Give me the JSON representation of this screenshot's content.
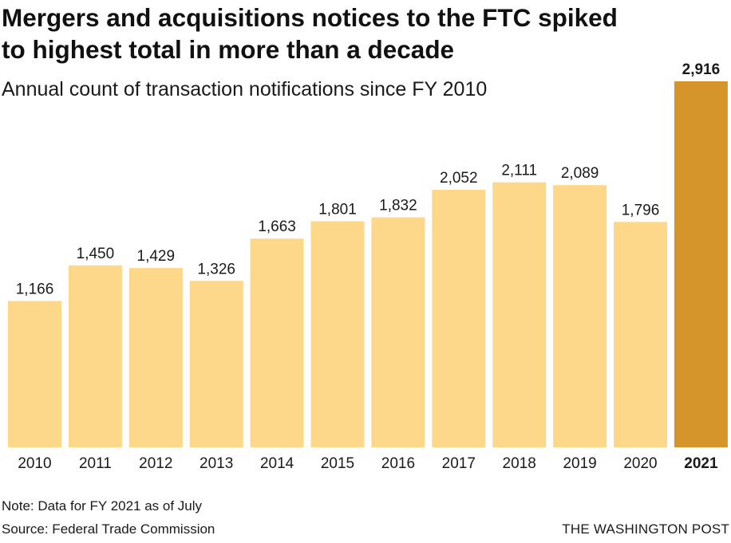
{
  "header": {
    "title": "Mergers and acquisitions notices to the FTC spiked to highest total in more than a decade",
    "subtitle": "Annual count of transaction notifications since FY 2010"
  },
  "footer": {
    "note": "Note: Data for FY 2021 as of July",
    "source": "Source: Federal Trade Commission",
    "credit": "THE WASHINGTON POST"
  },
  "colors": {
    "bar": "#fdd88a",
    "highlight_bar": "#d6952a",
    "text": "#1a1a1a"
  },
  "chart_data": {
    "type": "bar",
    "title": "Mergers and acquisitions notices to the FTC spiked to highest total in more than a decade",
    "subtitle": "Annual count of transaction notifications since FY 2010",
    "xlabel": "",
    "ylabel": "",
    "categories": [
      "2010",
      "2011",
      "2012",
      "2013",
      "2014",
      "2015",
      "2016",
      "2017",
      "2018",
      "2019",
      "2020",
      "2021"
    ],
    "values": [
      1166,
      1450,
      1429,
      1326,
      1663,
      1801,
      1832,
      2052,
      2111,
      2089,
      1796,
      2916
    ],
    "value_labels": [
      "1,166",
      "1,450",
      "1,429",
      "1,326",
      "1,663",
      "1,801",
      "1,832",
      "2,052",
      "2,111",
      "2,089",
      "1,796",
      "2,916"
    ],
    "highlight_category": "2021",
    "ylim": [
      0,
      2916
    ],
    "grid": false,
    "legend": "none"
  }
}
